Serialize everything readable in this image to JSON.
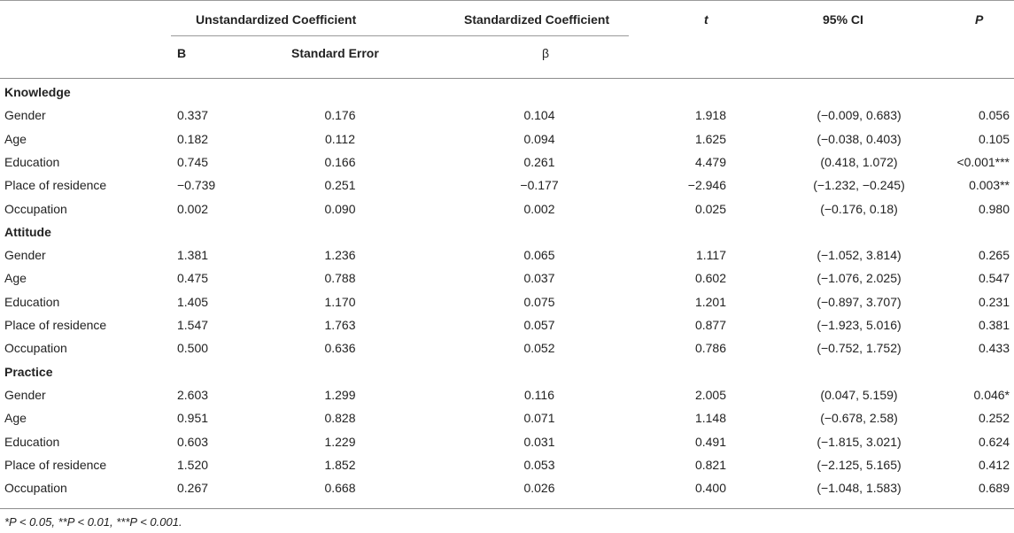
{
  "header": {
    "unstd": "Unstandardized Coefficient",
    "std": "Standardized Coefficient",
    "t": "t",
    "ci": "95% CI",
    "p": "P",
    "b": "B",
    "se": "Standard Error",
    "beta": "β"
  },
  "sections": [
    {
      "title": "Knowledge",
      "rows": [
        {
          "label": "Gender",
          "b": "0.337",
          "se": "0.176",
          "beta": "0.104",
          "t": "1.918",
          "ci": "(−0.009, 0.683)",
          "p": "0.056"
        },
        {
          "label": "Age",
          "b": "0.182",
          "se": "0.112",
          "beta": "0.094",
          "t": "1.625",
          "ci": "(−0.038, 0.403)",
          "p": "0.105"
        },
        {
          "label": "Education",
          "b": "0.745",
          "se": "0.166",
          "beta": "0.261",
          "t": "4.479",
          "ci": "(0.418, 1.072)",
          "p": "<0.001***"
        },
        {
          "label": "Place of residence",
          "b": "−0.739",
          "se": "0.251",
          "beta": "−0.177",
          "t": "−2.946",
          "ci": "(−1.232, −0.245)",
          "p": "0.003**"
        },
        {
          "label": "Occupation",
          "b": "0.002",
          "se": "0.090",
          "beta": "0.002",
          "t": "0.025",
          "ci": "(−0.176, 0.18)",
          "p": "0.980"
        }
      ]
    },
    {
      "title": "Attitude",
      "rows": [
        {
          "label": "Gender",
          "b": "1.381",
          "se": "1.236",
          "beta": "0.065",
          "t": "1.117",
          "ci": "(−1.052, 3.814)",
          "p": "0.265"
        },
        {
          "label": "Age",
          "b": "0.475",
          "se": "0.788",
          "beta": "0.037",
          "t": "0.602",
          "ci": "(−1.076, 2.025)",
          "p": "0.547"
        },
        {
          "label": "Education",
          "b": "1.405",
          "se": "1.170",
          "beta": "0.075",
          "t": "1.201",
          "ci": "(−0.897, 3.707)",
          "p": "0.231"
        },
        {
          "label": "Place of residence",
          "b": "1.547",
          "se": "1.763",
          "beta": "0.057",
          "t": "0.877",
          "ci": "(−1.923, 5.016)",
          "p": "0.381"
        },
        {
          "label": "Occupation",
          "b": "0.500",
          "se": "0.636",
          "beta": "0.052",
          "t": "0.786",
          "ci": "(−0.752, 1.752)",
          "p": "0.433"
        }
      ]
    },
    {
      "title": "Practice",
      "rows": [
        {
          "label": "Gender",
          "b": "2.603",
          "se": "1.299",
          "beta": "0.116",
          "t": "2.005",
          "ci": "(0.047, 5.159)",
          "p": "0.046*"
        },
        {
          "label": "Age",
          "b": "0.951",
          "se": "0.828",
          "beta": "0.071",
          "t": "1.148",
          "ci": "(−0.678, 2.58)",
          "p": "0.252"
        },
        {
          "label": "Education",
          "b": "0.603",
          "se": "1.229",
          "beta": "0.031",
          "t": "0.491",
          "ci": "(−1.815, 3.021)",
          "p": "0.624"
        },
        {
          "label": "Place of residence",
          "b": "1.520",
          "se": "1.852",
          "beta": "0.053",
          "t": "0.821",
          "ci": "(−2.125, 5.165)",
          "p": "0.412"
        },
        {
          "label": "Occupation",
          "b": "0.267",
          "se": "0.668",
          "beta": "0.026",
          "t": "0.400",
          "ci": "(−1.048, 1.583)",
          "p": "0.689"
        }
      ]
    }
  ],
  "footnote": "*P < 0.05, **P < 0.01, ***P < 0.001."
}
